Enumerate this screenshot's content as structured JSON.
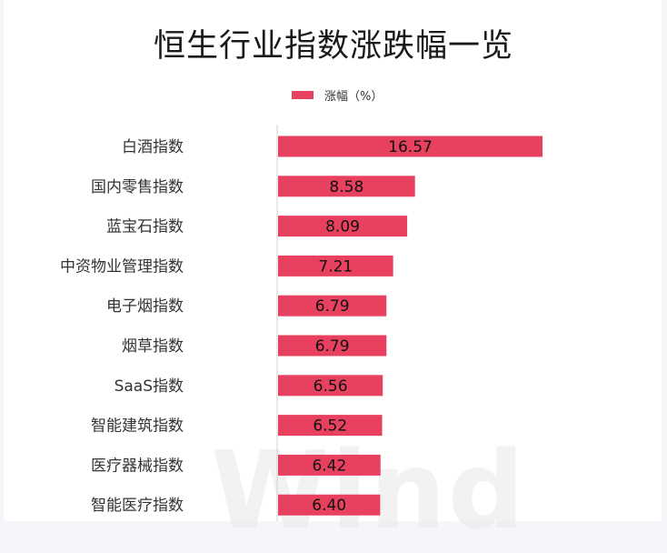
{
  "colors": {
    "bar": "#e8415f",
    "axis": "#d0d0d0"
  },
  "watermark": "Wind",
  "chart_data": {
    "type": "bar",
    "orientation": "horizontal",
    "title": "恒生行业指数涨跌幅一览",
    "legend": {
      "label": "涨幅（%）",
      "position": "top"
    },
    "grid": false,
    "xlim": [
      0,
      20
    ],
    "categories": [
      "白酒指数",
      "国内零售指数",
      "蓝宝石指数",
      "中资物业管理指数",
      "电子烟指数",
      "烟草指数",
      "SaaS指数",
      "智能建筑指数",
      "医疗器械指数",
      "智能医疗指数"
    ],
    "values": [
      16.57,
      8.58,
      8.09,
      7.21,
      6.79,
      6.79,
      6.56,
      6.52,
      6.42,
      6.4
    ],
    "value_labels": [
      "16.57",
      "8.58",
      "8.09",
      "7.21",
      "6.79",
      "6.79",
      "6.56",
      "6.52",
      "6.42",
      "6.40"
    ]
  }
}
